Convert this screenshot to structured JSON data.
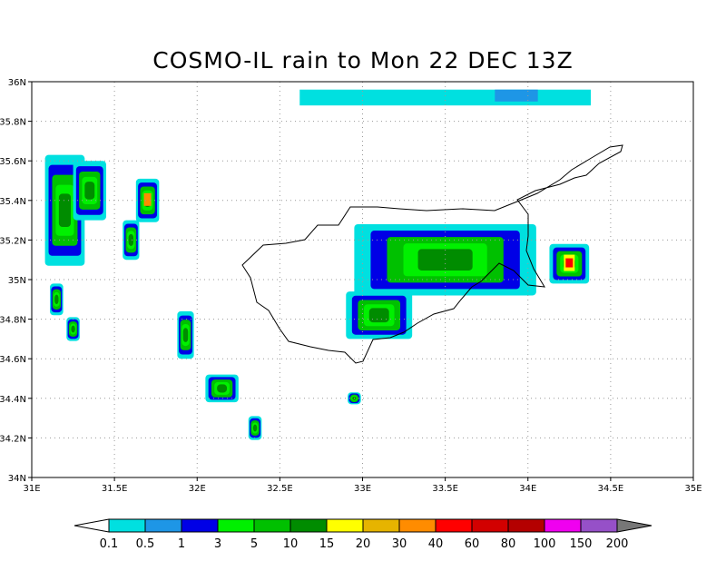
{
  "title": "COSMO-IL rain to Mon 22 DEC 13Z",
  "map": {
    "lat_labels": [
      {
        "lat": 36.0,
        "label": "36N"
      },
      {
        "lat": 35.8,
        "label": "35.8N"
      },
      {
        "lat": 35.6,
        "label": "35.6N"
      },
      {
        "lat": 35.4,
        "label": "35.4N"
      },
      {
        "lat": 35.2,
        "label": "35.2N"
      },
      {
        "lat": 35.0,
        "label": "35N"
      },
      {
        "lat": 34.8,
        "label": "34.8N"
      },
      {
        "lat": 34.6,
        "label": "34.6N"
      },
      {
        "lat": 34.4,
        "label": "34.4N"
      },
      {
        "lat": 34.2,
        "label": "34.2N"
      },
      {
        "lat": 34.0,
        "label": "34N"
      }
    ],
    "lon_labels": [
      {
        "lon": 31.0,
        "label": "31E"
      },
      {
        "lon": 31.5,
        "label": "31.5E"
      },
      {
        "lon": 32.0,
        "label": "32E"
      },
      {
        "lon": 32.5,
        "label": "32.5E"
      },
      {
        "lon": 33.0,
        "label": "33E"
      },
      {
        "lon": 33.5,
        "label": "33.5E"
      },
      {
        "lon": 34.0,
        "label": "34E"
      },
      {
        "lon": 34.5,
        "label": "34.5E"
      },
      {
        "lon": 35.0,
        "label": "35E"
      }
    ],
    "extent": {
      "lon": [
        31,
        35
      ],
      "lat": [
        34,
        36
      ]
    }
  },
  "colorbar": {
    "labels": [
      "0.1",
      "0.5",
      "1",
      "3",
      "5",
      "10",
      "15",
      "20",
      "30",
      "40",
      "60",
      "80",
      "100",
      "150",
      "200"
    ],
    "colors": [
      "#00e0e0",
      "#1e96e6",
      "#0000e6",
      "#00f000",
      "#00c000",
      "#008c00",
      "#ffff00",
      "#e6b400",
      "#ff8c00",
      "#ff0000",
      "#d20000",
      "#b40000",
      "#f000f0",
      "#9650c8"
    ],
    "under_color": "#ffffff",
    "over_color": "#777777"
  },
  "rain_areas": [
    {
      "name": "north-strip",
      "lon": 32.62,
      "lat": 35.92,
      "rx": 0.88,
      "ry": 0.04,
      "level": 0
    },
    {
      "name": "north-strip-core",
      "lon": 33.8,
      "lat": 35.93,
      "rx": 0.13,
      "ry": 0.03,
      "level": 1
    },
    {
      "name": "west-band-1",
      "lon": 31.2,
      "lat": 35.35,
      "rx": 0.12,
      "ry": 0.28,
      "level": 2
    },
    {
      "name": "west-band-2",
      "lon": 31.35,
      "lat": 35.45,
      "rx": 0.1,
      "ry": 0.15,
      "level": 2
    },
    {
      "name": "west-core-1",
      "lon": 31.7,
      "lat": 35.4,
      "rx": 0.07,
      "ry": 0.11,
      "level": 2
    },
    {
      "name": "west-small-1",
      "lon": 31.6,
      "lat": 35.2,
      "rx": 0.05,
      "ry": 0.1,
      "level": 2
    },
    {
      "name": "west-small-2",
      "lon": 31.25,
      "lat": 34.75,
      "rx": 0.04,
      "ry": 0.06,
      "level": 2
    },
    {
      "name": "west-small-3",
      "lon": 31.15,
      "lat": 34.9,
      "rx": 0.04,
      "ry": 0.08,
      "level": 2
    },
    {
      "name": "mid-1",
      "lon": 31.93,
      "lat": 34.72,
      "rx": 0.05,
      "ry": 0.12,
      "level": 2
    },
    {
      "name": "mid-2",
      "lon": 32.15,
      "lat": 34.45,
      "rx": 0.1,
      "ry": 0.07,
      "level": 2
    },
    {
      "name": "mid-3",
      "lon": 32.35,
      "lat": 34.25,
      "rx": 0.04,
      "ry": 0.06,
      "level": 2
    },
    {
      "name": "cyprus-main",
      "lon": 33.5,
      "lat": 35.1,
      "rx": 0.55,
      "ry": 0.18,
      "level": 2
    },
    {
      "name": "cyprus-south",
      "lon": 33.1,
      "lat": 34.82,
      "rx": 0.2,
      "ry": 0.12,
      "level": 2
    },
    {
      "name": "east-cell",
      "lon": 34.25,
      "lat": 35.08,
      "rx": 0.12,
      "ry": 0.1,
      "level": 2
    },
    {
      "name": "small-south",
      "lon": 32.95,
      "lat": 34.4,
      "rx": 0.04,
      "ry": 0.03,
      "level": 2
    }
  ]
}
